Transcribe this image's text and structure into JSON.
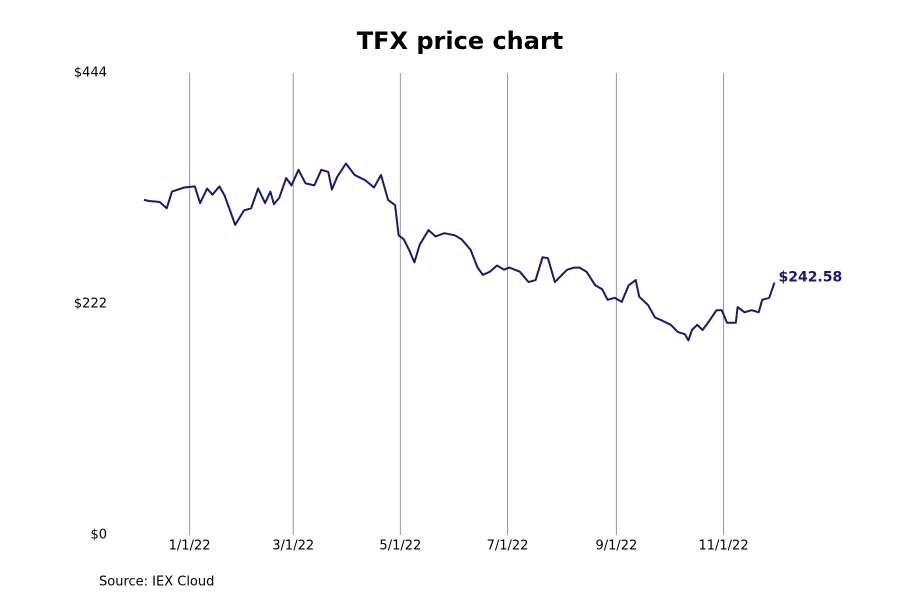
{
  "chart_data": {
    "type": "line",
    "title": "TFX price chart",
    "source": "Source: IEX Cloud",
    "x": [
      "2021-12-06",
      "2021-12-09",
      "2021-12-15",
      "2021-12-19",
      "2021-12-22",
      "2021-12-29",
      "2022-01-04",
      "2022-01-07",
      "2022-01-11",
      "2022-01-14",
      "2022-01-18",
      "2022-01-21",
      "2022-01-27",
      "2022-02-01",
      "2022-02-05",
      "2022-02-09",
      "2022-02-13",
      "2022-02-16",
      "2022-02-18",
      "2022-02-21",
      "2022-02-25",
      "2022-02-28",
      "2022-03-04",
      "2022-03-08",
      "2022-03-13",
      "2022-03-17",
      "2022-03-21",
      "2022-03-23",
      "2022-03-26",
      "2022-03-31",
      "2022-04-05",
      "2022-04-11",
      "2022-04-16",
      "2022-04-20",
      "2022-04-24",
      "2022-04-28",
      "2022-04-30",
      "2022-05-03",
      "2022-05-06",
      "2022-05-09",
      "2022-05-12",
      "2022-05-17",
      "2022-05-21",
      "2022-05-26",
      "2022-06-01",
      "2022-06-05",
      "2022-06-10",
      "2022-06-14",
      "2022-06-17",
      "2022-06-21",
      "2022-06-25",
      "2022-06-29",
      "2022-07-02",
      "2022-07-08",
      "2022-07-13",
      "2022-07-17",
      "2022-07-21",
      "2022-07-24",
      "2022-07-28",
      "2022-08-01",
      "2022-08-04",
      "2022-08-08",
      "2022-08-11",
      "2022-08-15",
      "2022-08-20",
      "2022-08-24",
      "2022-08-27",
      "2022-08-31",
      "2022-09-04",
      "2022-09-08",
      "2022-09-12",
      "2022-09-14",
      "2022-09-19",
      "2022-09-23",
      "2022-09-27",
      "2022-10-02",
      "2022-10-06",
      "2022-10-10",
      "2022-10-12",
      "2022-10-14",
      "2022-10-17",
      "2022-10-20",
      "2022-10-24",
      "2022-10-28",
      "2022-10-31",
      "2022-11-03",
      "2022-11-08",
      "2022-11-09",
      "2022-11-13",
      "2022-11-17",
      "2022-11-21",
      "2022-11-23",
      "2022-11-27",
      "2022-11-30"
    ],
    "series": [
      {
        "name": "TFX",
        "color": "#191970",
        "values": [
          322,
          321,
          320,
          314,
          330,
          334,
          335,
          319,
          333,
          327,
          335,
          326,
          298,
          312,
          314,
          333,
          319,
          330,
          318,
          324,
          343,
          336,
          351,
          338,
          336,
          351,
          349,
          332,
          344,
          357,
          346,
          341,
          334,
          346,
          322,
          317,
          288,
          284,
          274,
          262,
          279,
          293,
          287,
          290,
          288,
          284,
          274,
          257,
          250,
          253,
          259,
          255,
          257,
          253,
          243,
          245,
          267,
          266,
          243,
          250,
          255,
          257,
          257,
          253,
          240,
          236,
          226,
          228,
          224,
          240,
          245,
          229,
          221,
          209,
          206,
          202,
          195,
          193,
          187,
          197,
          202,
          197,
          206,
          216,
          216,
          204,
          204,
          219,
          214,
          216,
          214,
          226,
          228,
          242.58
        ],
        "value_labels": [
          null,
          null,
          null,
          null,
          null,
          null,
          null,
          null,
          null,
          null,
          null,
          null,
          null,
          null,
          null,
          null,
          null,
          null,
          null,
          null,
          null,
          null,
          null,
          null,
          null,
          null,
          null,
          null,
          null,
          null,
          null,
          null,
          null,
          null,
          null,
          null,
          null,
          null,
          null,
          null,
          null,
          null,
          null,
          null,
          null,
          null,
          null,
          null,
          null,
          null,
          null,
          null,
          null,
          null,
          null,
          null,
          null,
          null,
          null,
          null,
          null,
          null,
          null,
          null,
          null,
          null,
          null,
          null,
          null,
          null,
          null,
          null,
          null,
          null,
          null,
          null,
          null,
          null,
          null,
          null,
          null,
          null,
          null,
          null,
          null,
          null,
          null,
          null,
          null,
          null,
          null,
          null,
          null,
          "$242.58"
        ]
      }
    ],
    "xlim": [
      "2021-11-11",
      "2023-01-12"
    ],
    "xticks": [
      {
        "value": "2022-01-01",
        "label": "1/1/22"
      },
      {
        "value": "2022-03-01",
        "label": "3/1/22"
      },
      {
        "value": "2022-05-01",
        "label": "5/1/22"
      },
      {
        "value": "2022-07-01",
        "label": "7/1/22"
      },
      {
        "value": "2022-09-01",
        "label": "9/1/22"
      },
      {
        "value": "2022-11-01",
        "label": "11/1/22"
      }
    ],
    "ylim": [
      0,
      444
    ],
    "yticks": [
      {
        "value": 0,
        "label": "$0"
      },
      {
        "value": 222,
        "label": "$222"
      },
      {
        "value": 444,
        "label": "$444"
      }
    ],
    "grid": "x"
  }
}
